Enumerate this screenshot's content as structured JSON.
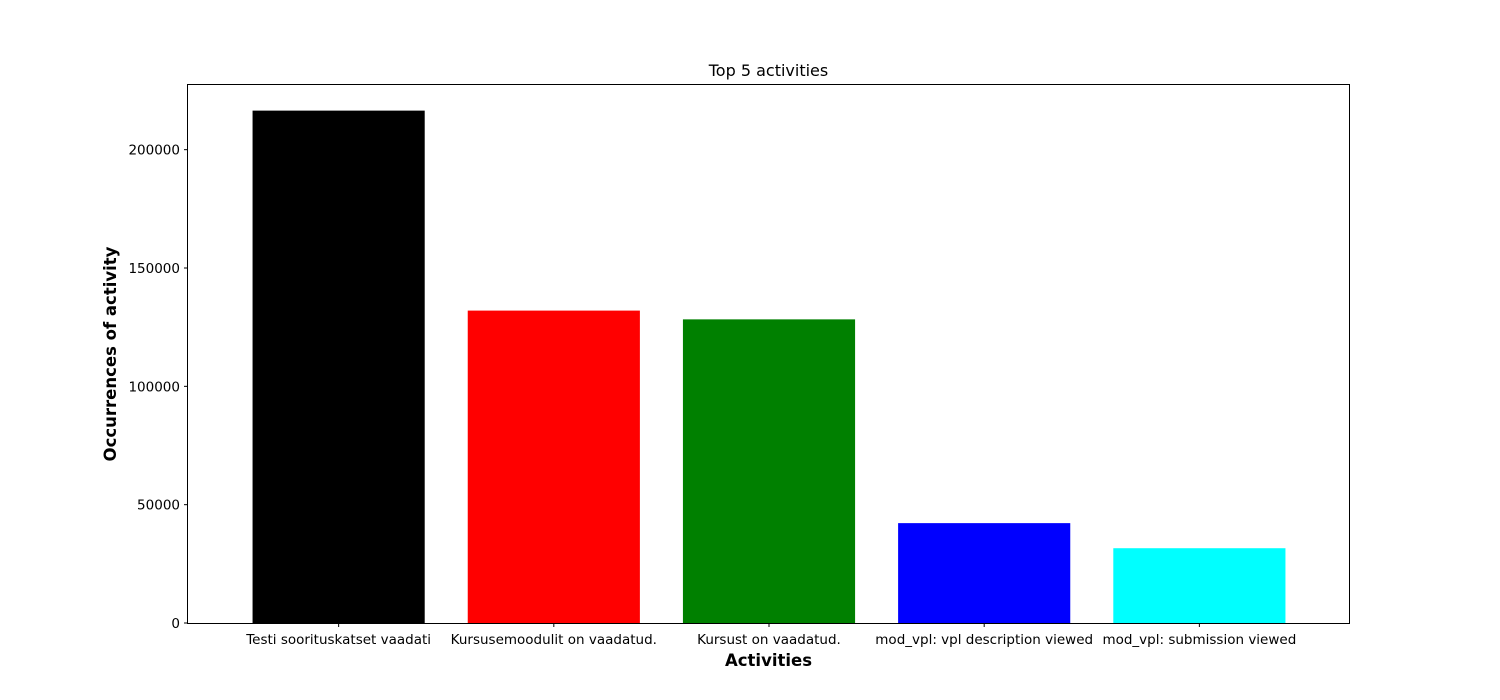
{
  "chart_data": {
    "type": "bar",
    "title": "Top 5 activities",
    "xlabel": "Activities",
    "ylabel": "Occurrences of activity",
    "categories": [
      "Testi soorituskatset vaadati",
      "Kursusemoodulit on vaadatud.",
      "Kursust on vaadatud.",
      "mod_vpl: vpl description viewed",
      "mod_vpl: submission viewed"
    ],
    "values": [
      216500,
      132000,
      128300,
      42200,
      31600
    ],
    "colors": [
      "#000000",
      "#ff0000",
      "#008000",
      "#0000ff",
      "#00ffff"
    ],
    "ylim": [
      0,
      227325
    ],
    "yticks": [
      0,
      50000,
      100000,
      150000,
      200000
    ],
    "ytick_labels": [
      "0",
      "50000",
      "100000",
      "150000",
      "200000"
    ],
    "grid": false,
    "legend": "none"
  }
}
